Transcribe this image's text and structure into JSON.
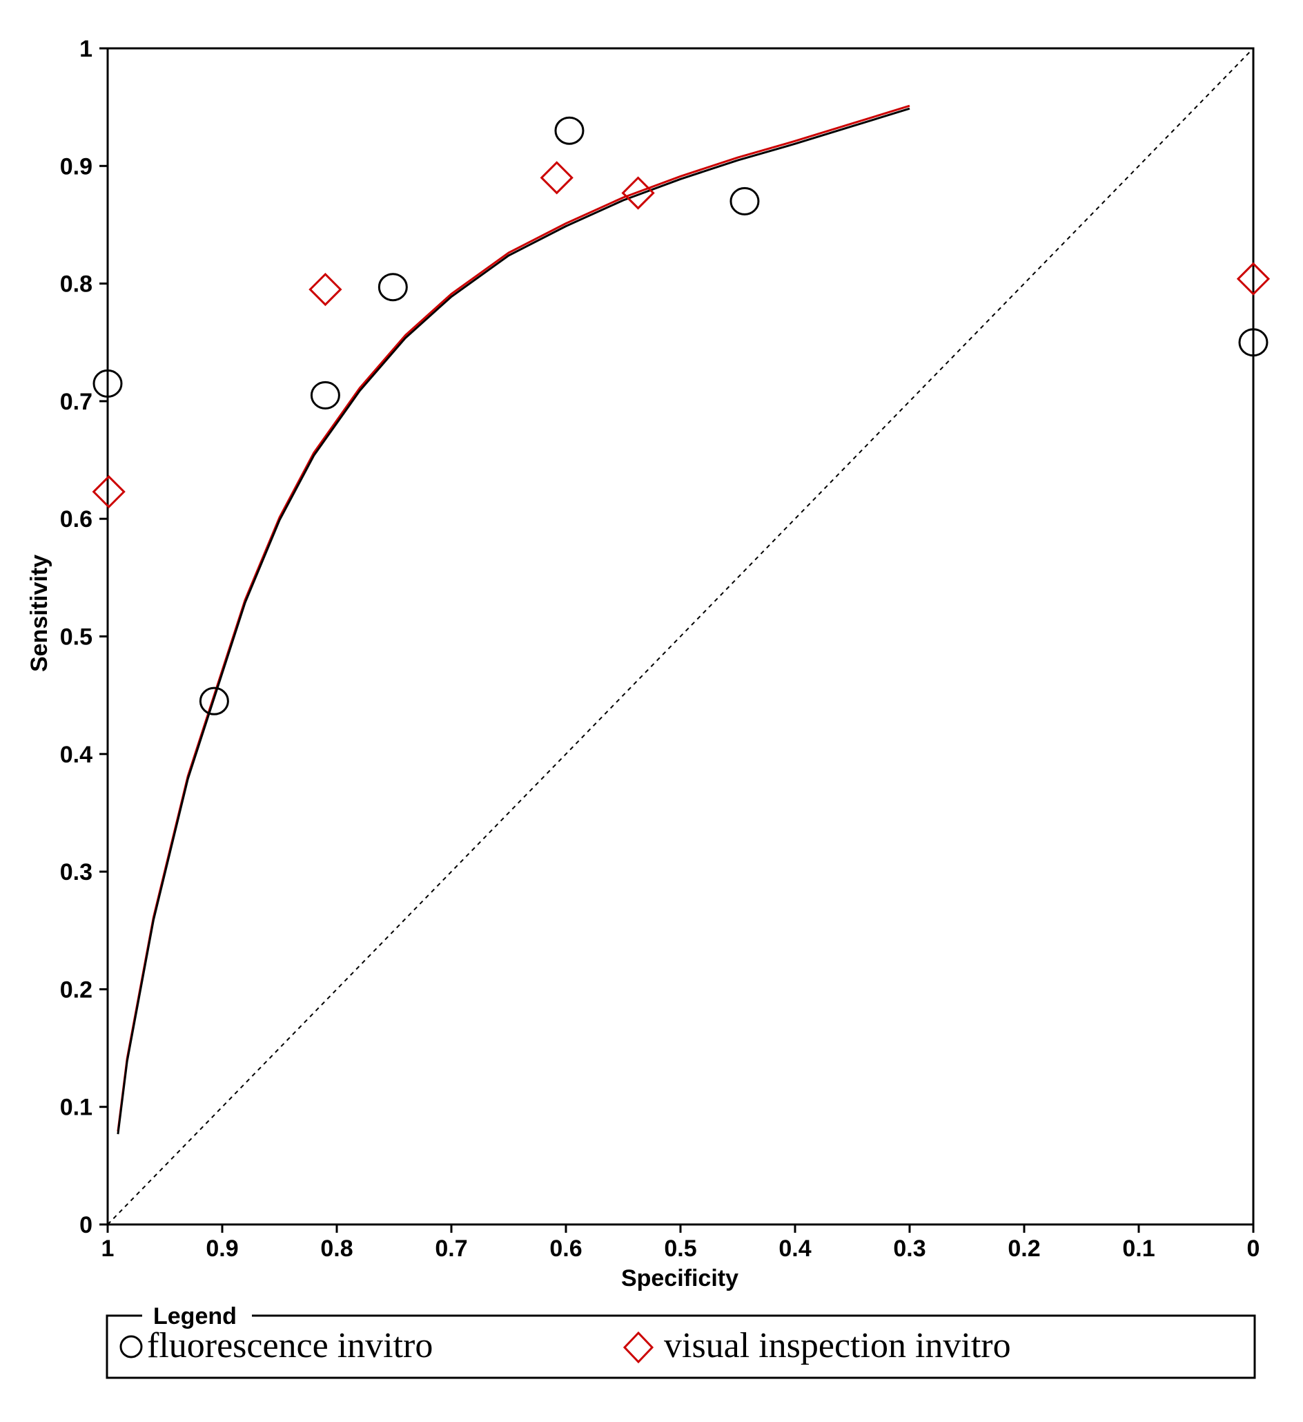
{
  "chart_data": {
    "type": "scatter",
    "xlabel": "Specificity",
    "ylabel": "Sensitivity",
    "xlim": [
      1,
      0
    ],
    "ylim": [
      0,
      1
    ],
    "x_reversed": true,
    "grid": false,
    "x_ticks": [
      1,
      0.9,
      0.8,
      0.7,
      0.6,
      0.5,
      0.4,
      0.3,
      0.2,
      0.1,
      0
    ],
    "y_ticks": [
      0,
      0.1,
      0.2,
      0.3,
      0.4,
      0.5,
      0.6,
      0.7,
      0.8,
      0.9,
      1
    ],
    "x_tick_labels": [
      "1",
      "0.9",
      "0.8",
      "0.7",
      "0.6",
      "0.5",
      "0.4",
      "0.3",
      "0.2",
      "0.1",
      "0"
    ],
    "y_tick_labels": [
      "0",
      "0.1",
      "0.2",
      "0.3",
      "0.4",
      "0.5",
      "0.6",
      "0.7",
      "0.8",
      "0.9",
      "1"
    ],
    "series": [
      {
        "name": "fluorescence invitro",
        "marker": "circle",
        "color": "#000000",
        "points": [
          {
            "x": 1.0,
            "y": 0.715
          },
          {
            "x": 0.907,
            "y": 0.445
          },
          {
            "x": 0.81,
            "y": 0.705
          },
          {
            "x": 0.751,
            "y": 0.797
          },
          {
            "x": 0.597,
            "y": 0.93
          },
          {
            "x": 0.444,
            "y": 0.87
          },
          {
            "x": 0.0,
            "y": 0.75
          }
        ]
      },
      {
        "name": "visual inspection invitro",
        "marker": "diamond",
        "color": "#cc0000",
        "points": [
          {
            "x": 0.999,
            "y": 0.623
          },
          {
            "x": 0.81,
            "y": 0.795
          },
          {
            "x": 0.608,
            "y": 0.89
          },
          {
            "x": 0.537,
            "y": 0.877
          },
          {
            "x": 0.0,
            "y": 0.804
          }
        ]
      }
    ],
    "curves": [
      {
        "color": "#cc0000",
        "points": [
          [
            0.991,
            0.078
          ],
          [
            0.983,
            0.14
          ],
          [
            0.96,
            0.26
          ],
          [
            0.93,
            0.38
          ],
          [
            0.9,
            0.47
          ],
          [
            0.88,
            0.53
          ],
          [
            0.85,
            0.6
          ],
          [
            0.82,
            0.655
          ],
          [
            0.78,
            0.71
          ],
          [
            0.74,
            0.755
          ],
          [
            0.7,
            0.79
          ],
          [
            0.65,
            0.825
          ],
          [
            0.6,
            0.85
          ],
          [
            0.55,
            0.872
          ],
          [
            0.5,
            0.89
          ],
          [
            0.45,
            0.906
          ],
          [
            0.4,
            0.92
          ],
          [
            0.35,
            0.935
          ],
          [
            0.3,
            0.95
          ]
        ]
      },
      {
        "color": "#000000",
        "points": [
          [
            0.991,
            0.078
          ],
          [
            0.983,
            0.14
          ],
          [
            0.96,
            0.26
          ],
          [
            0.93,
            0.38
          ],
          [
            0.9,
            0.47
          ],
          [
            0.88,
            0.53
          ],
          [
            0.85,
            0.6
          ],
          [
            0.82,
            0.655
          ],
          [
            0.78,
            0.71
          ],
          [
            0.74,
            0.755
          ],
          [
            0.7,
            0.79
          ],
          [
            0.65,
            0.825
          ],
          [
            0.6,
            0.85
          ],
          [
            0.55,
            0.872
          ],
          [
            0.5,
            0.89
          ],
          [
            0.45,
            0.906
          ],
          [
            0.4,
            0.92
          ],
          [
            0.35,
            0.935
          ],
          [
            0.3,
            0.95
          ]
        ]
      }
    ],
    "reference_line": {
      "from": [
        1,
        0
      ],
      "to": [
        0,
        1
      ],
      "style": "dashed",
      "color": "#000000"
    },
    "legend": {
      "title": "Legend",
      "placement": "bottom",
      "entries": [
        {
          "label": "fluorescence invitro",
          "marker": "circle",
          "color": "#000000"
        },
        {
          "label": "visual inspection invitro",
          "marker": "diamond",
          "color": "#cc0000"
        }
      ]
    }
  }
}
